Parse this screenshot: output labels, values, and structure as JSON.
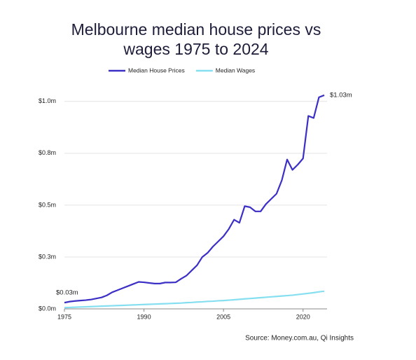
{
  "chart_data": {
    "type": "line",
    "title": "Melbourne median house prices vs wages 1975 to 2024",
    "source": "Source: Money.com.au, Qi Insights",
    "x": [
      1975,
      1976,
      1977,
      1978,
      1979,
      1980,
      1981,
      1982,
      1983,
      1984,
      1985,
      1986,
      1987,
      1988,
      1989,
      1990,
      1991,
      1992,
      1993,
      1994,
      1995,
      1996,
      1997,
      1998,
      1999,
      2000,
      2001,
      2002,
      2003,
      2004,
      2005,
      2006,
      2007,
      2008,
      2009,
      2010,
      2011,
      2012,
      2013,
      2014,
      2015,
      2016,
      2017,
      2018,
      2019,
      2020,
      2021,
      2022,
      2023,
      2024
    ],
    "xlim": [
      1975,
      2024
    ],
    "xticks": [
      1975,
      1990,
      2005,
      2020
    ],
    "ylim": [
      0,
      1.05
    ],
    "yticks": [
      {
        "value": 0,
        "label": "$0.0m"
      },
      {
        "value": 0.25,
        "label": "$0.3m"
      },
      {
        "value": 0.5,
        "label": "$0.5m"
      },
      {
        "value": 0.75,
        "label": "$0.8m"
      },
      {
        "value": 1.0,
        "label": "$1.0m"
      }
    ],
    "grid": true,
    "legend": "top",
    "series": [
      {
        "name": "Median House Prices",
        "color": "#3b2fc6",
        "values": [
          0.03,
          0.035,
          0.038,
          0.04,
          0.042,
          0.045,
          0.05,
          0.055,
          0.065,
          0.08,
          0.09,
          0.1,
          0.11,
          0.12,
          0.13,
          0.128,
          0.125,
          0.122,
          0.122,
          0.127,
          0.127,
          0.128,
          0.145,
          0.16,
          0.185,
          0.21,
          0.25,
          0.27,
          0.3,
          0.325,
          0.35,
          0.385,
          0.43,
          0.415,
          0.495,
          0.49,
          0.47,
          0.47,
          0.505,
          0.53,
          0.555,
          0.62,
          0.72,
          0.67,
          0.695,
          0.725,
          0.93,
          0.92,
          1.02,
          1.03
        ],
        "value_labels": [
          "$0.03m",
          null,
          null,
          null,
          null,
          null,
          null,
          null,
          null,
          null,
          null,
          null,
          null,
          null,
          null,
          null,
          null,
          null,
          null,
          null,
          null,
          null,
          null,
          null,
          null,
          null,
          null,
          null,
          null,
          null,
          null,
          null,
          null,
          null,
          null,
          null,
          null,
          null,
          null,
          null,
          null,
          null,
          null,
          null,
          null,
          null,
          null,
          null,
          null,
          "$1.03m"
        ]
      },
      {
        "name": "Median Wages",
        "color": "#86dff0",
        "values": [
          0.006,
          0.007,
          0.008,
          0.009,
          0.01,
          0.011,
          0.012,
          0.013,
          0.014,
          0.015,
          0.016,
          0.017,
          0.018,
          0.019,
          0.02,
          0.021,
          0.022,
          0.023,
          0.024,
          0.025,
          0.026,
          0.027,
          0.028,
          0.03,
          0.031,
          0.033,
          0.034,
          0.036,
          0.037,
          0.039,
          0.04,
          0.042,
          0.044,
          0.046,
          0.048,
          0.05,
          0.052,
          0.054,
          0.056,
          0.058,
          0.06,
          0.062,
          0.064,
          0.066,
          0.069,
          0.072,
          0.075,
          0.078,
          0.082,
          0.085
        ]
      }
    ]
  }
}
